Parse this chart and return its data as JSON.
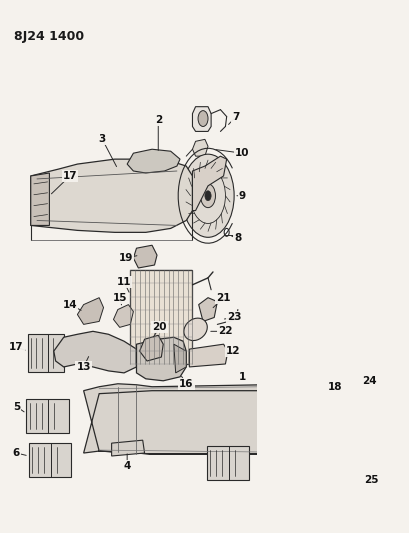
{
  "title": "8J24 1400",
  "bg": "#f0ede8",
  "fig_width": 4.09,
  "fig_height": 5.33,
  "dpi": 100
}
